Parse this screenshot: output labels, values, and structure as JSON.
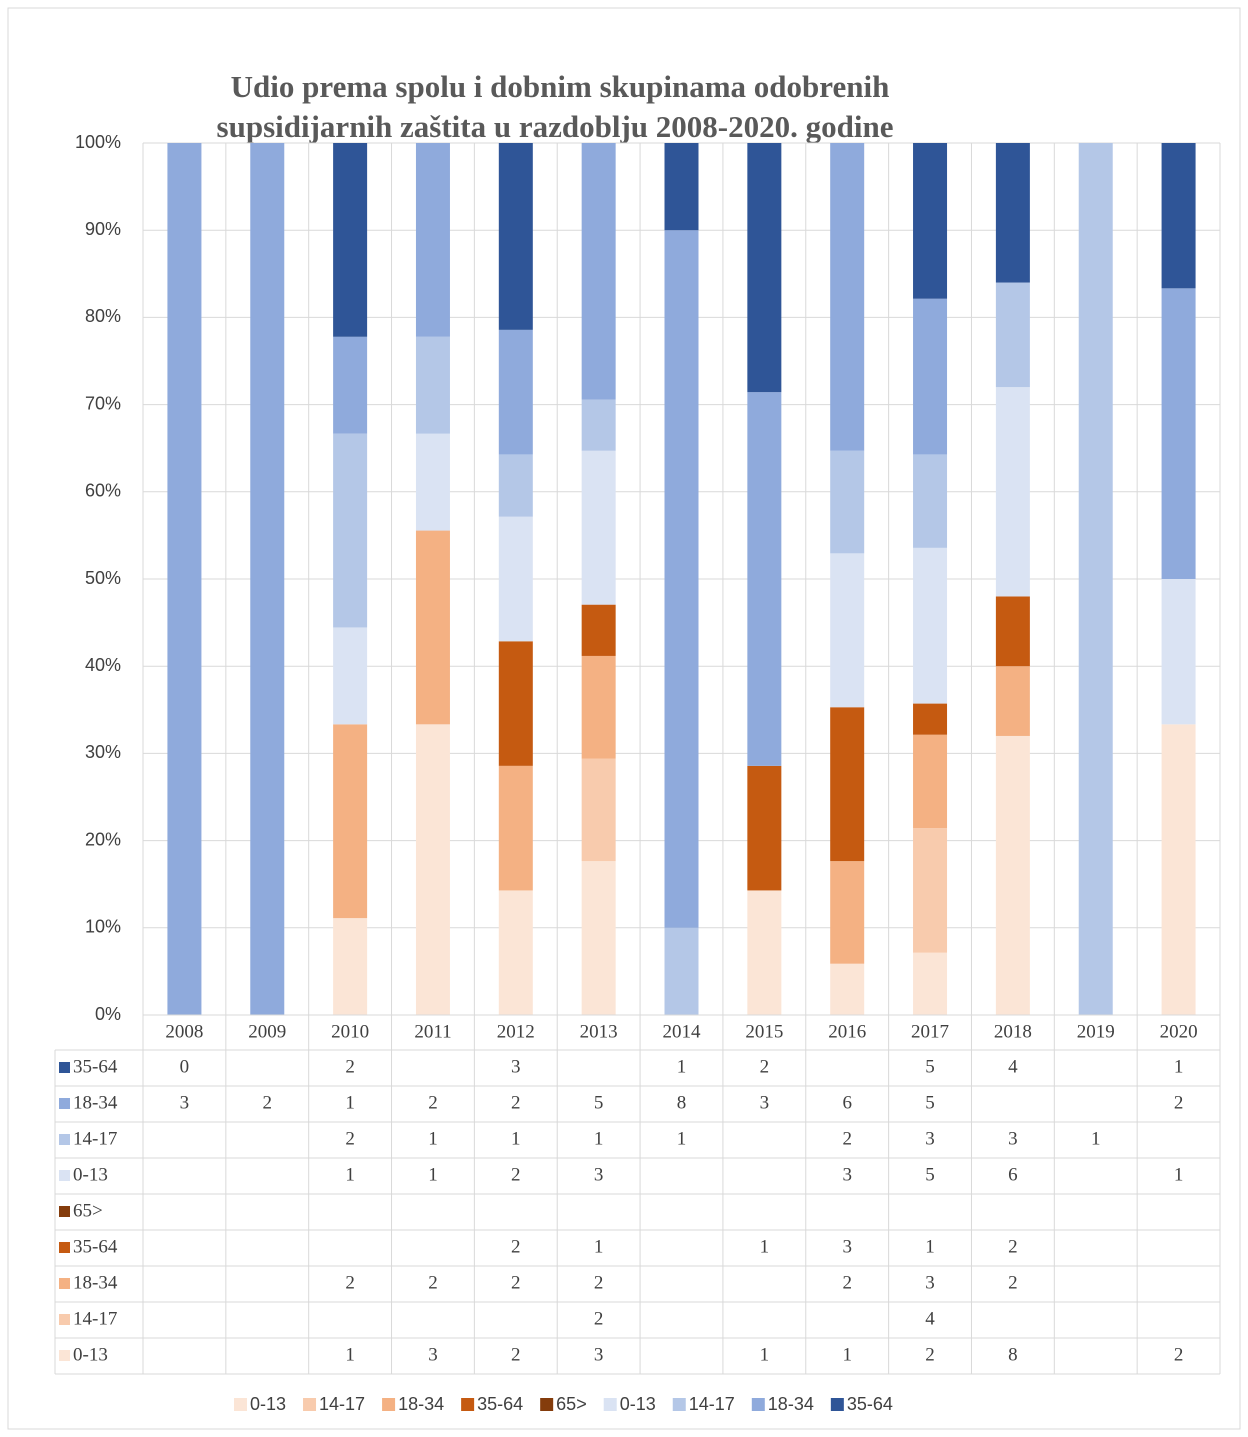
{
  "chart_data": {
    "type": "bar",
    "stacked": "percent",
    "title": [
      "Udio prema spolu i dobnim skupinama odobrenih",
      "supsidijarnih zaštita u razdoblju 2008-2020. godine"
    ],
    "categories": [
      "2008",
      "2009",
      "2010",
      "2011",
      "2012",
      "2013",
      "2014",
      "2015",
      "2016",
      "2017",
      "2018",
      "2019",
      "2020"
    ],
    "series": [
      {
        "name": "0-13",
        "color": "#fbe5d6",
        "values": [
          null,
          null,
          1,
          3,
          2,
          3,
          null,
          1,
          1,
          2,
          8,
          null,
          2
        ]
      },
      {
        "name": "14-17",
        "color": "#f8cbad",
        "values": [
          null,
          null,
          null,
          null,
          null,
          2,
          null,
          null,
          null,
          4,
          null,
          null,
          null
        ]
      },
      {
        "name": "18-34",
        "color": "#f4b183",
        "values": [
          null,
          null,
          2,
          2,
          2,
          2,
          null,
          null,
          2,
          3,
          2,
          null,
          null
        ]
      },
      {
        "name": "35-64",
        "color": "#c55a11",
        "values": [
          null,
          null,
          null,
          null,
          2,
          1,
          null,
          1,
          3,
          1,
          2,
          null,
          null
        ]
      },
      {
        "name": "65>",
        "color": "#843c0c",
        "values": [
          null,
          null,
          null,
          null,
          null,
          null,
          null,
          null,
          null,
          null,
          null,
          null,
          null
        ]
      },
      {
        "name": "0-13",
        "color": "#dae3f3",
        "values": [
          null,
          null,
          1,
          1,
          2,
          3,
          null,
          null,
          3,
          5,
          6,
          null,
          1
        ]
      },
      {
        "name": "14-17",
        "color": "#b4c7e7",
        "values": [
          null,
          null,
          2,
          1,
          1,
          1,
          1,
          null,
          2,
          3,
          3,
          1,
          null
        ]
      },
      {
        "name": "18-34",
        "color": "#8faadc",
        "values": [
          3,
          2,
          1,
          2,
          2,
          5,
          8,
          3,
          6,
          5,
          null,
          null,
          2
        ]
      },
      {
        "name": "35-64",
        "color": "#2f5597",
        "values": [
          0,
          null,
          2,
          null,
          3,
          null,
          1,
          2,
          null,
          5,
          4,
          null,
          1
        ]
      }
    ],
    "ylim": [
      0,
      100
    ],
    "yticks": [
      {
        "value": 0,
        "label": "0%"
      },
      {
        "value": 10,
        "label": "10%"
      },
      {
        "value": 20,
        "label": "20%"
      },
      {
        "value": 30,
        "label": "30%"
      },
      {
        "value": 40,
        "label": "40%"
      },
      {
        "value": 50,
        "label": "50%"
      },
      {
        "value": 60,
        "label": "60%"
      },
      {
        "value": 70,
        "label": "70%"
      },
      {
        "value": 80,
        "label": "80%"
      },
      {
        "value": 90,
        "label": "90%"
      },
      {
        "value": 100,
        "label": "100%"
      }
    ],
    "grid": true,
    "legend": "bottom",
    "data_table": true
  }
}
